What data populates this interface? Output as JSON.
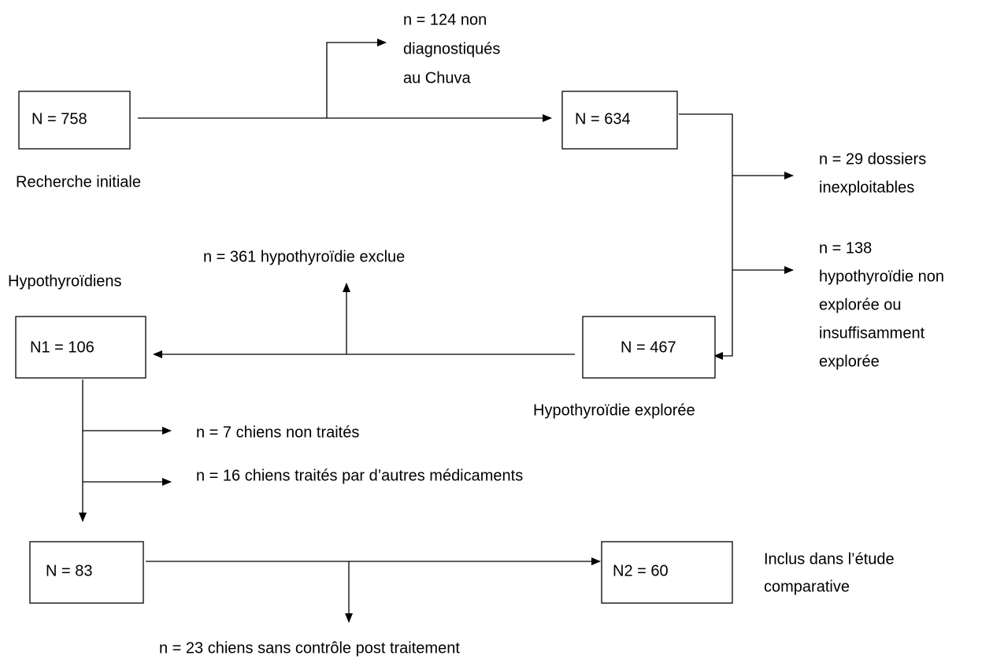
{
  "nodes": [
    {
      "label": "N = 758",
      "caption": "Recherche initiale"
    },
    {
      "label": "N = 634"
    },
    {
      "label": "N = 467",
      "caption": "Hypothyroïdie explorée"
    },
    {
      "label": "N1 = 106",
      "caption": "Hypothyroïdiens"
    },
    {
      "label": "N = 83"
    },
    {
      "label": "N2 = 60",
      "caption": [
        "Inclus dans l’étude",
        "comparative"
      ]
    }
  ],
  "exclusions": [
    [
      "n = 124 non",
      "diagnostiqués",
      "au Chuva"
    ],
    [
      "n = 29 dossiers",
      "inexploitables"
    ],
    [
      "n = 138",
      "hypothyroïdie non",
      "explorée ou",
      "insuffisamment",
      "explorée"
    ],
    [
      "n = 361 hypothyroïdie exclue"
    ],
    [
      "n = 7 chiens non traités"
    ],
    [
      "n = 16 chiens traités par d’autres médicaments"
    ],
    [
      "n = 23 chiens sans contrôle post traitement"
    ]
  ]
}
